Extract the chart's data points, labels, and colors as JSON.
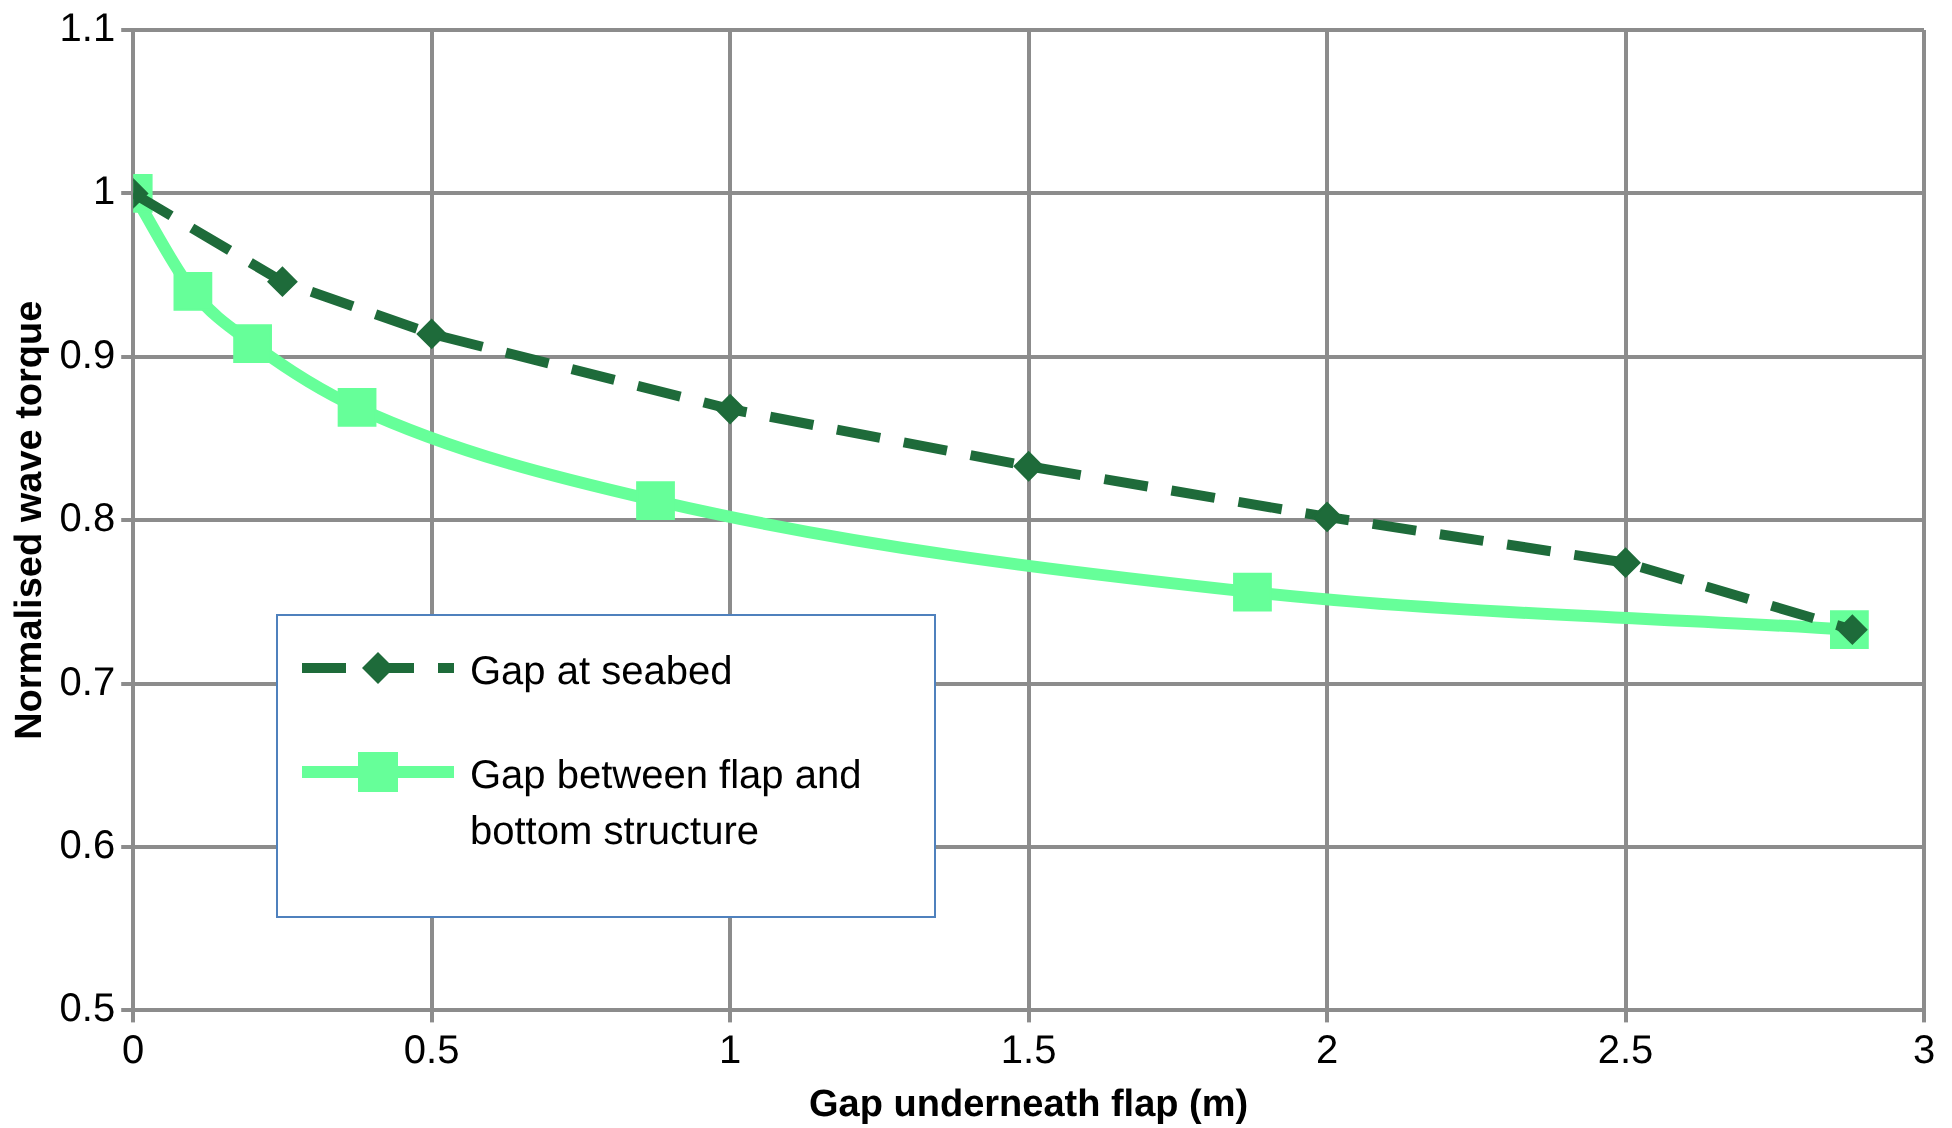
{
  "chart_data": {
    "type": "line",
    "xlabel": "Gap underneath flap (m)",
    "ylabel": "Normalised wave torque",
    "xlim": [
      0,
      3
    ],
    "xticks": [
      0,
      0.5,
      1,
      1.5,
      2,
      2.5,
      3
    ],
    "ylim": [
      0.5,
      1.1
    ],
    "yticks": [
      0.5,
      0.6,
      0.7,
      0.8,
      0.9,
      1,
      1.1
    ],
    "grid": true,
    "legend": "bottom left",
    "series": [
      {
        "name": "Gap at seabed",
        "color": "#1e6b3a",
        "marker": "diamond",
        "line_style": "dashed",
        "x": [
          0,
          0.25,
          0.5,
          1,
          1.5,
          2,
          2.5,
          2.88
        ],
        "values": [
          1.0,
          0.946,
          0.914,
          0.868,
          0.833,
          0.802,
          0.774,
          0.733
        ]
      },
      {
        "name": "Gap between flap and bottom structure",
        "color": "#66ff99",
        "marker": "square",
        "line_style": "solid",
        "x": [
          0,
          0.1,
          0.2,
          0.375,
          0.875,
          1.875,
          2.875
        ],
        "values": [
          1.0,
          0.94,
          0.908,
          0.869,
          0.812,
          0.756,
          0.733
        ]
      }
    ]
  }
}
